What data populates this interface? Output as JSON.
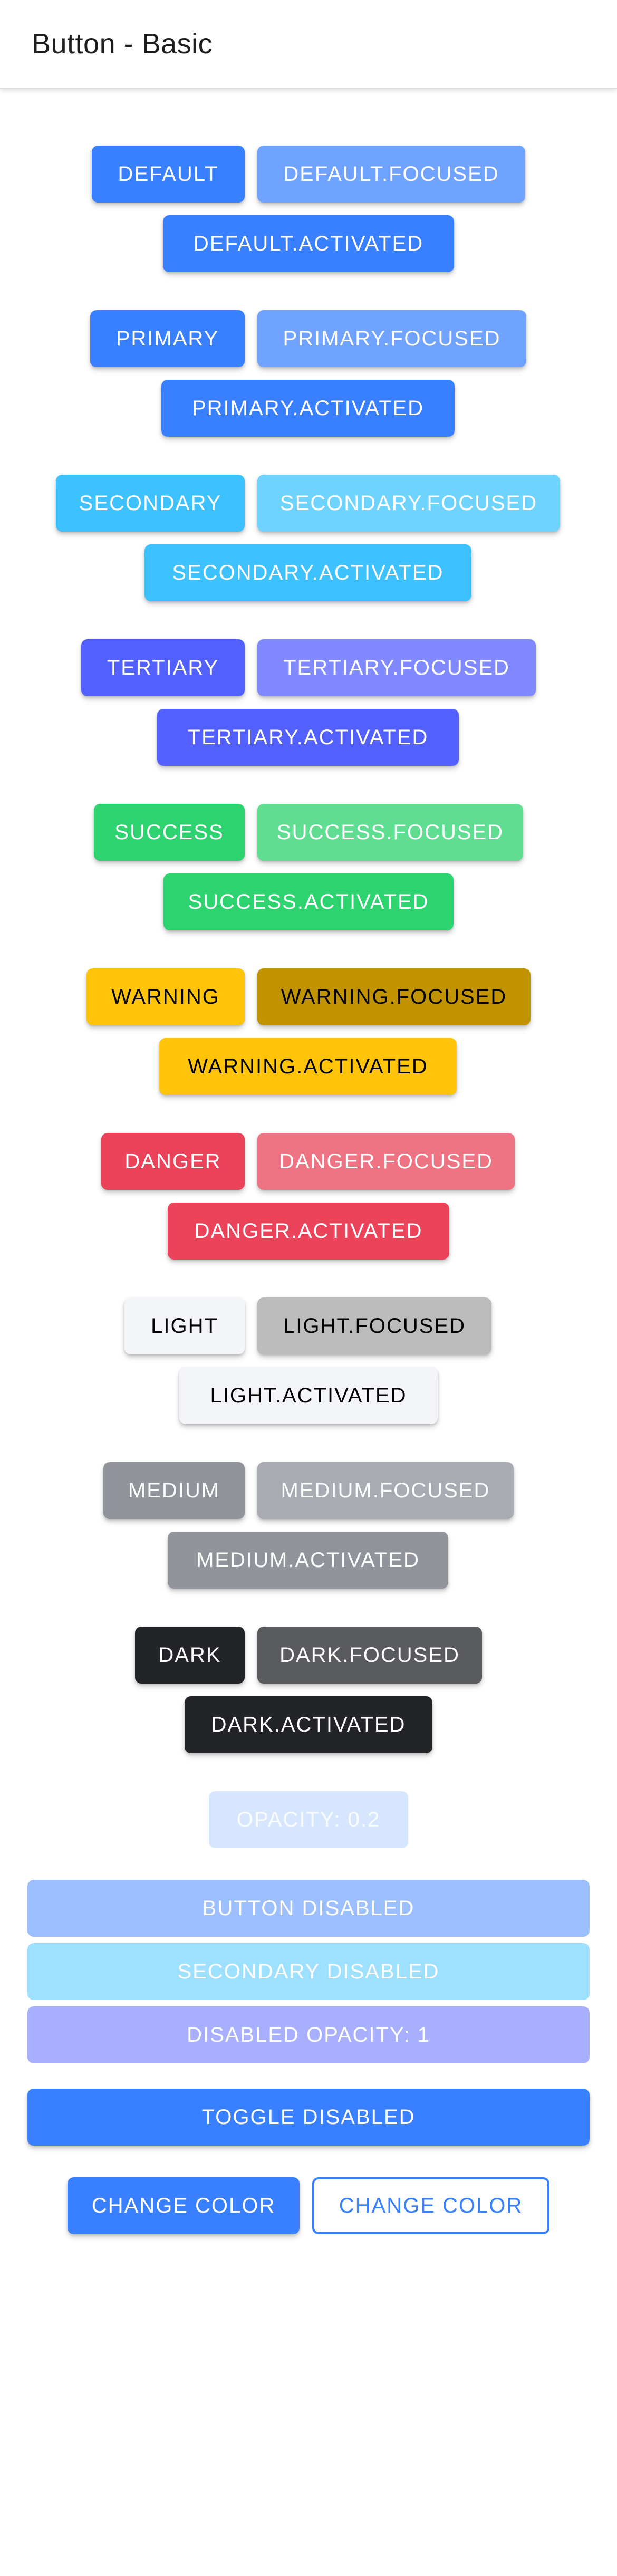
{
  "header": {
    "title": "Button - Basic"
  },
  "buttons": {
    "default": "DEFAULT",
    "default_focused": "DEFAULT.FOCUSED",
    "default_activated": "DEFAULT.ACTIVATED",
    "primary": "PRIMARY",
    "primary_focused": "PRIMARY.FOCUSED",
    "primary_activated": "PRIMARY.ACTIVATED",
    "secondary": "SECONDARY",
    "secondary_focused": "SECONDARY.FOCUSED",
    "secondary_activated": "SECONDARY.ACTIVATED",
    "tertiary": "TERTIARY",
    "tertiary_focused": "TERTIARY.FOCUSED",
    "tertiary_activated": "TERTIARY.ACTIVATED",
    "success": "SUCCESS",
    "success_focused": "SUCCESS.FOCUSED",
    "success_activated": "SUCCESS.ACTIVATED",
    "warning": "WARNING",
    "warning_focused": "WARNING.FOCUSED",
    "warning_activated": "WARNING.ACTIVATED",
    "danger": "DANGER",
    "danger_focused": "DANGER.FOCUSED",
    "danger_activated": "DANGER.ACTIVATED",
    "light": "LIGHT",
    "light_focused": "LIGHT.FOCUSED",
    "light_activated": "LIGHT.ACTIVATED",
    "medium": "MEDIUM",
    "medium_focused": "MEDIUM.FOCUSED",
    "medium_activated": "MEDIUM.ACTIVATED",
    "dark": "DARK",
    "dark_focused": "DARK.FOCUSED",
    "dark_activated": "DARK.ACTIVATED",
    "opacity": "OPACITY: 0.2",
    "button_disabled": "BUTTON DISABLED",
    "secondary_disabled": "SECONDARY DISABLED",
    "disabled_opacity": "DISABLED OPACITY: 1",
    "toggle_disabled": "TOGGLE DISABLED",
    "change_color_solid": "CHANGE COLOR",
    "change_color_outline": "CHANGE COLOR"
  },
  "colors": {
    "primary": "#3880ff",
    "primary_focused": "#6fa3ff",
    "secondary": "#3dc2ff",
    "secondary_focused": "#6fd3ff",
    "tertiary": "#5260ff",
    "tertiary_focused": "#8089ff",
    "success": "#2dd36f",
    "success_focused": "#5fde91",
    "warning": "#ffc409",
    "warning_focused": "#c29300",
    "danger": "#eb445a",
    "danger_focused": "#ef7483",
    "light": "#f4f5f8",
    "light_focused": "#bcbcbc",
    "medium": "#92949c",
    "medium_focused": "#a9abb2",
    "dark": "#222428",
    "dark_focused": "#5a5b5f"
  }
}
